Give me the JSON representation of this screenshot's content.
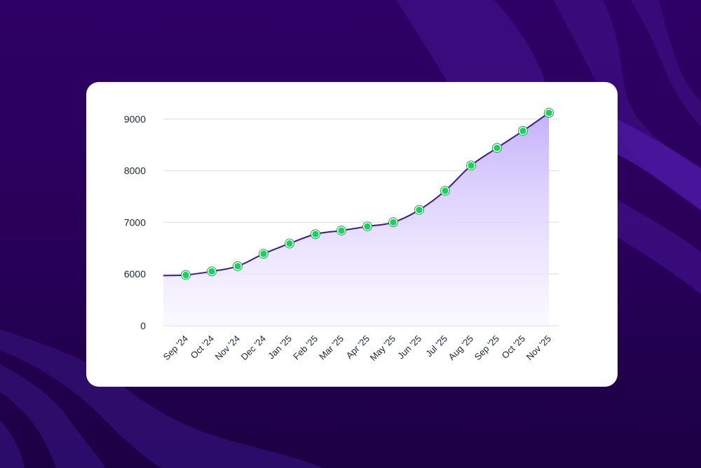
{
  "theme": {
    "background_top": "#2e0066",
    "background_bottom": "#1c0044",
    "wave_color": "#3d0f86",
    "card_bg": "#ffffff",
    "line_color": "#3a1a8c",
    "area_top": "#c4b2fb",
    "area_bottom": "#f7f4ff",
    "gridline_color": "#e4dcfb",
    "marker_fill": "#12d45a",
    "marker_ring": "#ffffff",
    "marker_outline": "#1aa84c",
    "axis_text": "#17253a"
  },
  "chart_data": {
    "type": "area",
    "title": "",
    "xlabel": "",
    "ylabel": "",
    "categories": [
      "Sep '24",
      "Oct '24",
      "Nov '24",
      "Dec '24",
      "Jan '25",
      "Feb '25",
      "Mar '25",
      "Apr '25",
      "May '25",
      "Jun '25",
      "Jul '25",
      "Aug '25",
      "Sep '25",
      "Oct '25",
      "Nov '25"
    ],
    "values": [
      5880,
      6050,
      6150,
      6390,
      6590,
      6770,
      6840,
      6920,
      7000,
      7240,
      7610,
      8100,
      8440,
      8770,
      9120
    ],
    "line_start_value": 5810,
    "y_ticks": [
      "9000",
      "8000",
      "7000",
      "6000",
      "0"
    ],
    "y_axis_note": "broken axis: gap between 0 and 6000",
    "ylim": [
      0,
      9200
    ],
    "grid": true,
    "legend": null,
    "markers": true
  }
}
